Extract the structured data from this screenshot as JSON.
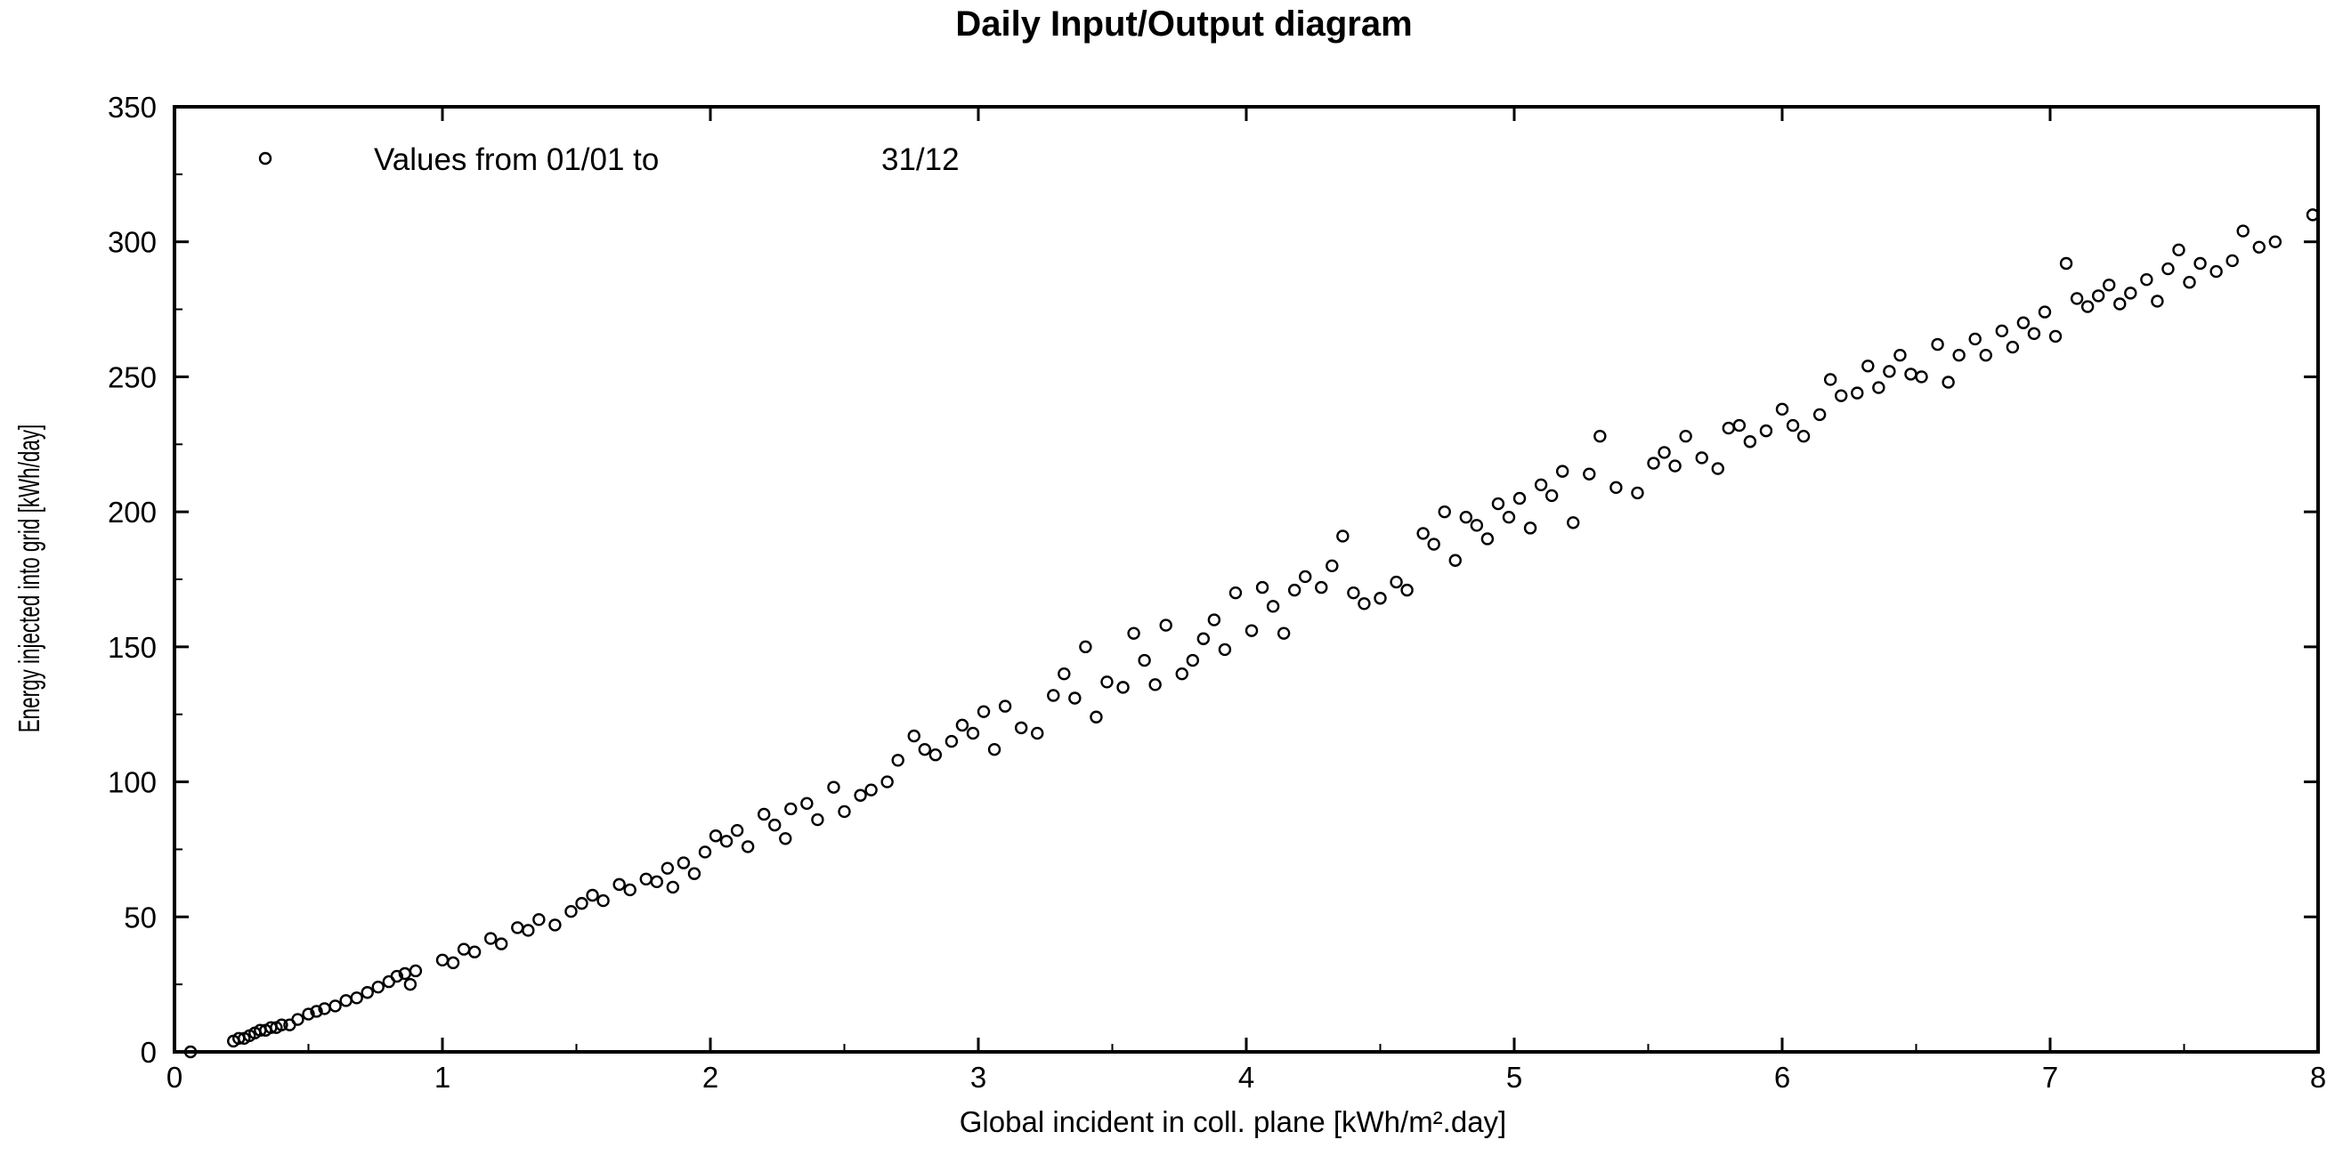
{
  "chart_data": {
    "type": "scatter",
    "title": "Daily Input/Output diagram",
    "xlabel": "Global incident in coll. plane [kWh/m².day]",
    "ylabel": "Energy injected into grid [kWh/day]",
    "xlim": [
      0,
      8
    ],
    "ylim": [
      0,
      350
    ],
    "x_ticks": [
      0,
      1,
      2,
      3,
      4,
      5,
      6,
      7,
      8
    ],
    "y_ticks": [
      0,
      50,
      100,
      150,
      200,
      250,
      300,
      350
    ],
    "grid": false,
    "legend": {
      "placement": "top-left",
      "prefix": "Values from 01/01 to",
      "end_date": "31/12"
    },
    "marker": "open-circle",
    "marker_color": "#000000",
    "series": [
      {
        "points": [
          [
            0.06,
            0
          ],
          [
            0.22,
            4
          ],
          [
            0.24,
            5
          ],
          [
            0.26,
            5
          ],
          [
            0.28,
            6
          ],
          [
            0.3,
            7
          ],
          [
            0.32,
            8
          ],
          [
            0.34,
            8
          ],
          [
            0.36,
            9
          ],
          [
            0.38,
            9
          ],
          [
            0.4,
            10
          ],
          [
            0.43,
            10
          ],
          [
            0.46,
            12
          ],
          [
            0.5,
            14
          ],
          [
            0.53,
            15
          ],
          [
            0.56,
            16
          ],
          [
            0.6,
            17
          ],
          [
            0.64,
            19
          ],
          [
            0.68,
            20
          ],
          [
            0.72,
            22
          ],
          [
            0.76,
            24
          ],
          [
            0.8,
            26
          ],
          [
            0.83,
            28
          ],
          [
            0.86,
            29
          ],
          [
            0.88,
            25
          ],
          [
            0.9,
            30
          ],
          [
            1.0,
            34
          ],
          [
            1.04,
            33
          ],
          [
            1.08,
            38
          ],
          [
            1.12,
            37
          ],
          [
            1.18,
            42
          ],
          [
            1.22,
            40
          ],
          [
            1.28,
            46
          ],
          [
            1.32,
            45
          ],
          [
            1.36,
            49
          ],
          [
            1.42,
            47
          ],
          [
            1.48,
            52
          ],
          [
            1.52,
            55
          ],
          [
            1.56,
            58
          ],
          [
            1.6,
            56
          ],
          [
            1.66,
            62
          ],
          [
            1.7,
            60
          ],
          [
            1.76,
            64
          ],
          [
            1.8,
            63
          ],
          [
            1.84,
            68
          ],
          [
            1.86,
            61
          ],
          [
            1.9,
            70
          ],
          [
            1.94,
            66
          ],
          [
            1.98,
            74
          ],
          [
            2.02,
            80
          ],
          [
            2.06,
            78
          ],
          [
            2.1,
            82
          ],
          [
            2.14,
            76
          ],
          [
            2.2,
            88
          ],
          [
            2.24,
            84
          ],
          [
            2.28,
            79
          ],
          [
            2.3,
            90
          ],
          [
            2.36,
            92
          ],
          [
            2.4,
            86
          ],
          [
            2.46,
            98
          ],
          [
            2.5,
            89
          ],
          [
            2.56,
            95
          ],
          [
            2.6,
            97
          ],
          [
            2.66,
            100
          ],
          [
            2.7,
            108
          ],
          [
            2.76,
            117
          ],
          [
            2.8,
            112
          ],
          [
            2.84,
            110
          ],
          [
            2.9,
            115
          ],
          [
            2.94,
            121
          ],
          [
            2.98,
            118
          ],
          [
            3.02,
            126
          ],
          [
            3.06,
            112
          ],
          [
            3.1,
            128
          ],
          [
            3.16,
            120
          ],
          [
            3.22,
            118
          ],
          [
            3.28,
            132
          ],
          [
            3.32,
            140
          ],
          [
            3.36,
            131
          ],
          [
            3.4,
            150
          ],
          [
            3.44,
            124
          ],
          [
            3.48,
            137
          ],
          [
            3.54,
            135
          ],
          [
            3.58,
            155
          ],
          [
            3.62,
            145
          ],
          [
            3.66,
            136
          ],
          [
            3.7,
            158
          ],
          [
            3.76,
            140
          ],
          [
            3.8,
            145
          ],
          [
            3.84,
            153
          ],
          [
            3.88,
            160
          ],
          [
            3.92,
            149
          ],
          [
            3.96,
            170
          ],
          [
            4.02,
            156
          ],
          [
            4.06,
            172
          ],
          [
            4.1,
            165
          ],
          [
            4.14,
            155
          ],
          [
            4.18,
            171
          ],
          [
            4.22,
            176
          ],
          [
            4.28,
            172
          ],
          [
            4.32,
            180
          ],
          [
            4.36,
            191
          ],
          [
            4.4,
            170
          ],
          [
            4.44,
            166
          ],
          [
            4.5,
            168
          ],
          [
            4.56,
            174
          ],
          [
            4.6,
            171
          ],
          [
            4.66,
            192
          ],
          [
            4.7,
            188
          ],
          [
            4.74,
            200
          ],
          [
            4.78,
            182
          ],
          [
            4.82,
            198
          ],
          [
            4.86,
            195
          ],
          [
            4.9,
            190
          ],
          [
            4.94,
            203
          ],
          [
            4.98,
            198
          ],
          [
            5.02,
            205
          ],
          [
            5.06,
            194
          ],
          [
            5.1,
            210
          ],
          [
            5.14,
            206
          ],
          [
            5.18,
            215
          ],
          [
            5.22,
            196
          ],
          [
            5.28,
            214
          ],
          [
            5.32,
            228
          ],
          [
            5.38,
            209
          ],
          [
            5.46,
            207
          ],
          [
            5.52,
            218
          ],
          [
            5.56,
            222
          ],
          [
            5.6,
            217
          ],
          [
            5.64,
            228
          ],
          [
            5.7,
            220
          ],
          [
            5.76,
            216
          ],
          [
            5.8,
            231
          ],
          [
            5.84,
            232
          ],
          [
            5.88,
            226
          ],
          [
            5.94,
            230
          ],
          [
            6.0,
            238
          ],
          [
            6.04,
            232
          ],
          [
            6.08,
            228
          ],
          [
            6.14,
            236
          ],
          [
            6.18,
            249
          ],
          [
            6.22,
            243
          ],
          [
            6.28,
            244
          ],
          [
            6.32,
            254
          ],
          [
            6.36,
            246
          ],
          [
            6.4,
            252
          ],
          [
            6.44,
            258
          ],
          [
            6.48,
            251
          ],
          [
            6.52,
            250
          ],
          [
            6.58,
            262
          ],
          [
            6.62,
            248
          ],
          [
            6.66,
            258
          ],
          [
            6.72,
            264
          ],
          [
            6.76,
            258
          ],
          [
            6.82,
            267
          ],
          [
            6.86,
            261
          ],
          [
            6.9,
            270
          ],
          [
            6.94,
            266
          ],
          [
            6.98,
            274
          ],
          [
            7.02,
            265
          ],
          [
            7.06,
            292
          ],
          [
            7.1,
            279
          ],
          [
            7.14,
            276
          ],
          [
            7.18,
            280
          ],
          [
            7.22,
            284
          ],
          [
            7.26,
            277
          ],
          [
            7.3,
            281
          ],
          [
            7.36,
            286
          ],
          [
            7.4,
            278
          ],
          [
            7.44,
            290
          ],
          [
            7.48,
            297
          ],
          [
            7.52,
            285
          ],
          [
            7.56,
            292
          ],
          [
            7.62,
            289
          ],
          [
            7.68,
            293
          ],
          [
            7.72,
            304
          ],
          [
            7.78,
            298
          ],
          [
            7.84,
            300
          ],
          [
            7.98,
            310
          ]
        ]
      }
    ]
  }
}
